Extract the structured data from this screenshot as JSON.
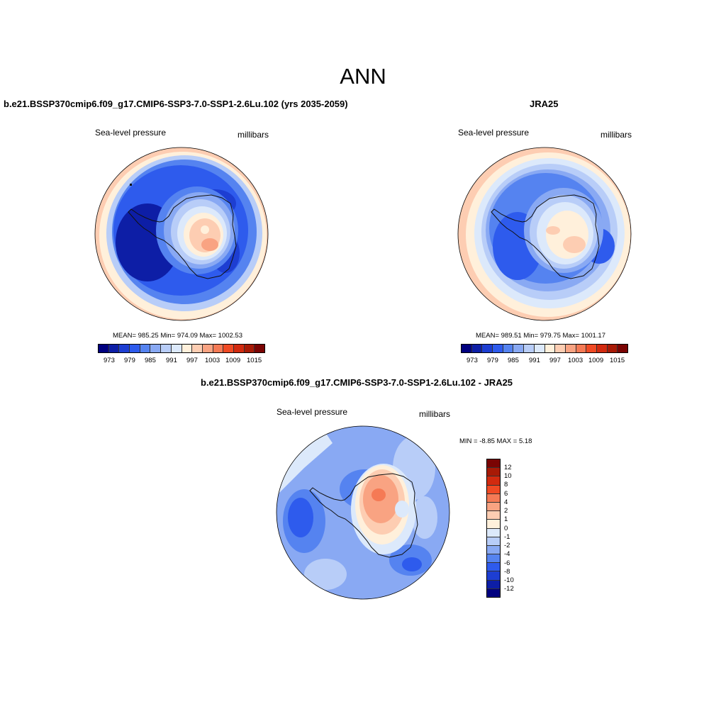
{
  "main_title": "ANN",
  "scale_colors": [
    "#00007f",
    "#0d1ea6",
    "#1d3ed2",
    "#2e5bed",
    "#5583f0",
    "#89a9f3",
    "#b8cdf8",
    "#dce9fb",
    "#fff0db",
    "#fdcdb2",
    "#f9a382",
    "#f57a55",
    "#f04a24",
    "#d22a0f",
    "#a81a06",
    "#7a0403"
  ],
  "diff_colors": [
    "#7a0403",
    "#a81a06",
    "#d22a0f",
    "#f04a24",
    "#f57a55",
    "#f9a382",
    "#fdcdb2",
    "#fff0db",
    "#dce9fb",
    "#b8cdf8",
    "#89a9f3",
    "#5583f0",
    "#2e5bed",
    "#1d3ed2",
    "#0d1ea6",
    "#00007f"
  ],
  "panels": [
    {
      "title": "b.e21.BSSP370cmip6.f09_g17.CMIP6-SSP3-7.0-SSP1-2.6Lu.102 (yrs 2035-2059)",
      "variable": "Sea-level pressure",
      "units": "millibars",
      "stats": "MEAN= 985.25  Min= 974.09  Max= 1002.53",
      "tick_labels": [
        "973",
        "979",
        "985",
        "991",
        "997",
        "1003",
        "1009",
        "1015"
      ]
    },
    {
      "title": "JRA25",
      "variable": "Sea-level pressure",
      "units": "millibars",
      "stats": "MEAN= 989.51  Min= 979.75  Max= 1001.17",
      "tick_labels": [
        "973",
        "979",
        "985",
        "991",
        "997",
        "1003",
        "1009",
        "1015"
      ]
    },
    {
      "title": "b.e21.BSSP370cmip6.f09_g17.CMIP6-SSP3-7.0-SSP1-2.6Lu.102 - JRA25",
      "variable": "Sea-level pressure",
      "units": "millibars",
      "stats": "MIN =  -8.85 MAX =   5.18",
      "tick_labels": [
        "12",
        "10",
        "8",
        "6",
        "4",
        "2",
        "1",
        "0",
        "-1",
        "-2",
        "-4",
        "-6",
        "-8",
        "-10",
        "-12"
      ]
    }
  ]
}
